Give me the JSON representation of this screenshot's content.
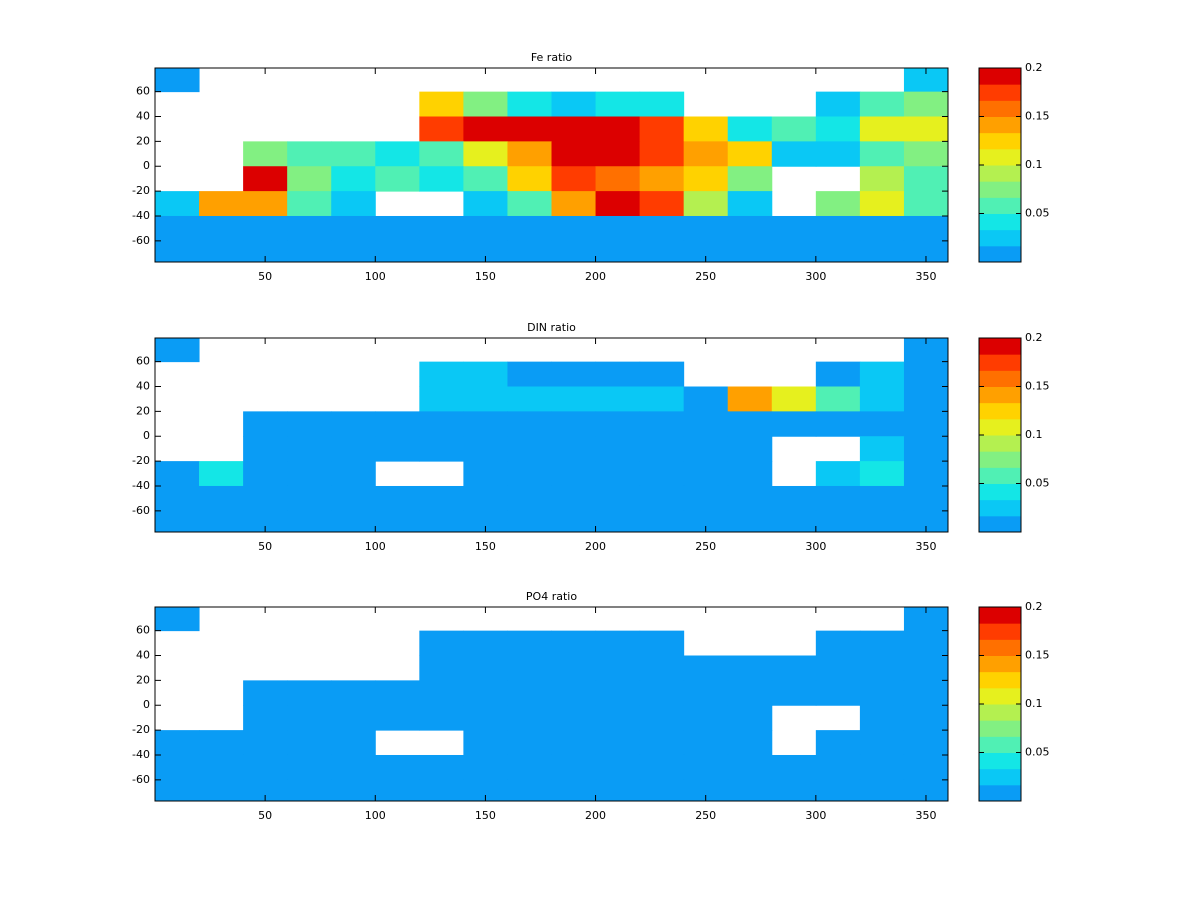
{
  "chart_data": [
    {
      "type": "heatmap",
      "title": "Fe ratio",
      "x": [
        0,
        20,
        40,
        60,
        80,
        100,
        120,
        140,
        160,
        180,
        200,
        220,
        240,
        260,
        280,
        300,
        320,
        340,
        360
      ],
      "y": [
        80,
        60,
        40,
        20,
        0,
        -20,
        -40,
        -60,
        -80
      ],
      "xlim": [
        0,
        360
      ],
      "ylim": [
        -77,
        79
      ],
      "xticks": [
        50,
        100,
        150,
        200,
        250,
        300,
        350
      ],
      "yticks": [
        -60,
        -40,
        -20,
        0,
        20,
        40,
        60
      ],
      "clim": [
        0,
        0.2
      ],
      "cticks": [
        0.05,
        0.1,
        0.15,
        0.2
      ],
      "colorscale": [
        "#0a9cf5",
        "#0ac8f5",
        "#14e6e6",
        "#50f0b4",
        "#82f082",
        "#b4f050",
        "#e6f01e",
        "#ffd200",
        "#ffa000",
        "#ff7000",
        "#ff3c00",
        "#dc0000"
      ],
      "values": [
        [
          0.01,
          null,
          null,
          null,
          null,
          null,
          null,
          null,
          null,
          null,
          null,
          null,
          null,
          null,
          null,
          null,
          null,
          0.02
        ],
        [
          null,
          null,
          null,
          null,
          null,
          null,
          0.12,
          0.08,
          0.04,
          0.03,
          0.04,
          0.04,
          null,
          null,
          null,
          0.03,
          0.05,
          0.07
        ],
        [
          null,
          null,
          null,
          null,
          null,
          null,
          0.18,
          0.2,
          0.2,
          0.2,
          0.2,
          0.17,
          0.12,
          0.04,
          0.05,
          0.04,
          0.1,
          0.1
        ],
        [
          null,
          null,
          0.08,
          0.05,
          0.06,
          0.04,
          0.05,
          0.1,
          0.15,
          0.2,
          0.2,
          0.18,
          0.15,
          0.12,
          0.03,
          0.03,
          0.05,
          0.07
        ],
        [
          null,
          null,
          0.2,
          0.08,
          0.04,
          0.05,
          0.04,
          0.06,
          0.12,
          0.17,
          0.16,
          0.15,
          0.12,
          0.07,
          null,
          null,
          0.09,
          0.05
        ],
        [
          0.03,
          0.15,
          0.14,
          0.06,
          0.03,
          null,
          null,
          0.03,
          0.05,
          0.15,
          0.2,
          0.18,
          0.09,
          0.03,
          null,
          0.08,
          0.1,
          0.05
        ],
        [
          0.01,
          0.01,
          0.01,
          0.01,
          0.01,
          0.01,
          0.01,
          0.01,
          0.01,
          0.01,
          0.01,
          0.01,
          0.01,
          0.01,
          0.01,
          0.01,
          0.01,
          0.01
        ],
        [
          0.005,
          0.005,
          0.005,
          0.005,
          0.005,
          0.005,
          0.005,
          0.005,
          0.005,
          0.005,
          0.005,
          0.005,
          0.005,
          0.005,
          0.005,
          0.005,
          0.005,
          0.005
        ]
      ]
    },
    {
      "type": "heatmap",
      "title": "DIN ratio",
      "x": [
        0,
        20,
        40,
        60,
        80,
        100,
        120,
        140,
        160,
        180,
        200,
        220,
        240,
        260,
        280,
        300,
        320,
        340,
        360
      ],
      "y": [
        80,
        60,
        40,
        20,
        0,
        -20,
        -40,
        -60,
        -80
      ],
      "xlim": [
        0,
        360
      ],
      "ylim": [
        -77,
        79
      ],
      "xticks": [
        50,
        100,
        150,
        200,
        250,
        300,
        350
      ],
      "yticks": [
        -60,
        -40,
        -20,
        0,
        20,
        40,
        60
      ],
      "clim": [
        0,
        0.2
      ],
      "cticks": [
        0.05,
        0.1,
        0.15,
        0.2
      ],
      "colorscale": [
        "#0a9cf5",
        "#0ac8f5",
        "#14e6e6",
        "#50f0b4",
        "#82f082",
        "#b4f050",
        "#e6f01e",
        "#ffd200",
        "#ffa000",
        "#ff7000",
        "#ff3c00",
        "#dc0000"
      ],
      "values": [
        [
          0.01,
          null,
          null,
          null,
          null,
          null,
          null,
          null,
          null,
          null,
          null,
          null,
          null,
          null,
          null,
          null,
          null,
          0.01
        ],
        [
          null,
          null,
          null,
          null,
          null,
          null,
          0.02,
          0.02,
          0.01,
          0.01,
          0.01,
          0.01,
          null,
          null,
          null,
          0.01,
          0.02,
          0.01
        ],
        [
          null,
          null,
          null,
          null,
          null,
          null,
          0.02,
          0.03,
          0.03,
          0.025,
          0.025,
          0.02,
          0.01,
          0.15,
          0.1,
          0.05,
          0.02,
          0.01
        ],
        [
          null,
          null,
          0.01,
          0.01,
          0.01,
          0.01,
          0.01,
          0.01,
          0.01,
          0.01,
          0.01,
          0.01,
          0.01,
          0.01,
          0.01,
          0.01,
          0.01,
          0.01
        ],
        [
          null,
          null,
          0.01,
          0.01,
          0.01,
          0.01,
          0.01,
          0.01,
          0.01,
          0.01,
          0.01,
          0.01,
          0.01,
          0.01,
          null,
          null,
          0.02,
          0.01
        ],
        [
          0.01,
          0.04,
          0.01,
          0.01,
          0.01,
          null,
          null,
          0.01,
          0.01,
          0.01,
          0.01,
          0.01,
          0.01,
          0.01,
          null,
          0.02,
          0.04,
          0.01
        ],
        [
          0.005,
          0.005,
          0.005,
          0.005,
          0.005,
          0.005,
          0.005,
          0.005,
          0.005,
          0.005,
          0.005,
          0.005,
          0.005,
          0.005,
          0.005,
          0.005,
          0.005,
          0.005
        ],
        [
          0.005,
          0.005,
          0.005,
          0.005,
          0.005,
          0.005,
          0.005,
          0.005,
          0.005,
          0.005,
          0.005,
          0.005,
          0.005,
          0.005,
          0.005,
          0.005,
          0.005,
          0.005
        ]
      ]
    },
    {
      "type": "heatmap",
      "title": "PO4 ratio",
      "x": [
        0,
        20,
        40,
        60,
        80,
        100,
        120,
        140,
        160,
        180,
        200,
        220,
        240,
        260,
        280,
        300,
        320,
        340,
        360
      ],
      "y": [
        80,
        60,
        40,
        20,
        0,
        -20,
        -40,
        -60,
        -80
      ],
      "xlim": [
        0,
        360
      ],
      "ylim": [
        -77,
        79
      ],
      "xticks": [
        50,
        100,
        150,
        200,
        250,
        300,
        350
      ],
      "yticks": [
        -60,
        -40,
        -20,
        0,
        20,
        40,
        60
      ],
      "clim": [
        0,
        0.2
      ],
      "cticks": [
        0.05,
        0.1,
        0.15,
        0.2
      ],
      "colorscale": [
        "#0a9cf5",
        "#0ac8f5",
        "#14e6e6",
        "#50f0b4",
        "#82f082",
        "#b4f050",
        "#e6f01e",
        "#ffd200",
        "#ffa000",
        "#ff7000",
        "#ff3c00",
        "#dc0000"
      ],
      "values": [
        [
          0.005,
          null,
          null,
          null,
          null,
          null,
          null,
          null,
          null,
          null,
          null,
          null,
          null,
          null,
          null,
          null,
          null,
          0.005
        ],
        [
          null,
          null,
          null,
          null,
          null,
          null,
          0.005,
          0.005,
          0.005,
          0.005,
          0.005,
          0.005,
          null,
          null,
          null,
          0.005,
          0.005,
          0.005
        ],
        [
          null,
          null,
          null,
          null,
          null,
          null,
          0.005,
          0.005,
          0.005,
          0.005,
          0.005,
          0.005,
          0.005,
          0.005,
          0.005,
          0.005,
          0.005,
          0.005
        ],
        [
          null,
          null,
          0.005,
          0.005,
          0.005,
          0.005,
          0.005,
          0.005,
          0.005,
          0.005,
          0.005,
          0.005,
          0.005,
          0.005,
          0.005,
          0.005,
          0.005,
          0.005
        ],
        [
          null,
          null,
          0.005,
          0.005,
          0.005,
          0.005,
          0.005,
          0.005,
          0.005,
          0.005,
          0.005,
          0.005,
          0.005,
          0.005,
          null,
          null,
          0.005,
          0.005
        ],
        [
          0.005,
          0.005,
          0.005,
          0.005,
          0.005,
          null,
          null,
          0.005,
          0.005,
          0.005,
          0.005,
          0.005,
          0.005,
          0.005,
          null,
          0.005,
          0.005,
          0.005
        ],
        [
          0.005,
          0.005,
          0.005,
          0.005,
          0.005,
          0.005,
          0.005,
          0.005,
          0.005,
          0.005,
          0.005,
          0.005,
          0.005,
          0.005,
          0.005,
          0.005,
          0.005,
          0.005
        ],
        [
          0.005,
          0.005,
          0.005,
          0.005,
          0.005,
          0.005,
          0.005,
          0.005,
          0.005,
          0.005,
          0.005,
          0.005,
          0.005,
          0.005,
          0.005,
          0.005,
          0.005,
          0.005
        ]
      ]
    }
  ]
}
